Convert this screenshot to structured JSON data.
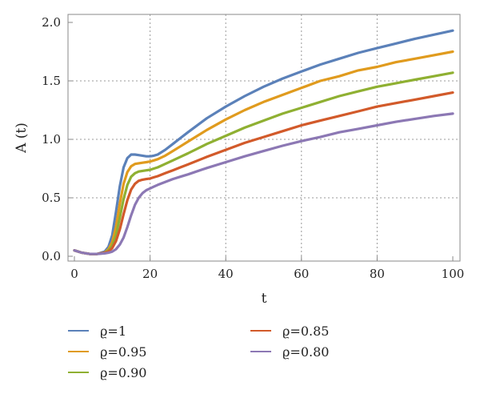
{
  "chart_data": {
    "type": "line",
    "title": "",
    "xlabel": "t",
    "ylabel": "A (t)",
    "xlim": [
      0,
      100
    ],
    "ylim": [
      0,
      2
    ],
    "xticks": [
      0,
      20,
      40,
      60,
      80,
      100
    ],
    "yticks": [
      0.0,
      0.5,
      1.0,
      1.5,
      2.0
    ],
    "ytick_labels": [
      "0.0",
      "0.5",
      "1.0",
      "1.5",
      "2.0"
    ],
    "grid": true,
    "legend_position": "bottom",
    "series": [
      {
        "name": "ϱ=1",
        "color": "#5b81b9",
        "x": [
          0,
          2,
          4,
          6,
          8,
          9,
          10,
          11,
          12,
          13,
          14,
          15,
          16,
          17,
          18,
          19,
          20,
          21,
          22,
          24,
          26,
          28,
          30,
          35,
          40,
          45,
          50,
          55,
          60,
          65,
          70,
          75,
          80,
          85,
          90,
          95,
          100
        ],
        "y": [
          0.05,
          0.03,
          0.02,
          0.02,
          0.04,
          0.08,
          0.18,
          0.38,
          0.6,
          0.76,
          0.84,
          0.87,
          0.87,
          0.865,
          0.86,
          0.855,
          0.855,
          0.86,
          0.87,
          0.91,
          0.96,
          1.01,
          1.06,
          1.18,
          1.28,
          1.37,
          1.45,
          1.52,
          1.58,
          1.64,
          1.69,
          1.74,
          1.78,
          1.82,
          1.86,
          1.895,
          1.93
        ]
      },
      {
        "name": "ϱ=0.95",
        "color": "#e09b1e",
        "x": [
          0,
          2,
          4,
          6,
          8,
          9,
          10,
          11,
          12,
          13,
          14,
          15,
          16,
          17,
          18,
          19,
          20,
          21,
          22,
          24,
          26,
          28,
          30,
          35,
          40,
          45,
          50,
          55,
          60,
          65,
          70,
          75,
          80,
          85,
          90,
          95,
          100
        ],
        "y": [
          0.05,
          0.03,
          0.02,
          0.02,
          0.03,
          0.06,
          0.12,
          0.25,
          0.45,
          0.62,
          0.72,
          0.77,
          0.79,
          0.795,
          0.8,
          0.805,
          0.81,
          0.82,
          0.83,
          0.86,
          0.9,
          0.94,
          0.98,
          1.08,
          1.17,
          1.25,
          1.32,
          1.38,
          1.44,
          1.5,
          1.54,
          1.59,
          1.62,
          1.66,
          1.69,
          1.72,
          1.75
        ]
      },
      {
        "name": "ϱ=0.90",
        "color": "#8fb032",
        "x": [
          0,
          2,
          4,
          6,
          8,
          9,
          10,
          11,
          12,
          13,
          14,
          15,
          16,
          17,
          18,
          19,
          20,
          21,
          22,
          24,
          26,
          28,
          30,
          35,
          40,
          45,
          50,
          55,
          60,
          65,
          70,
          75,
          80,
          85,
          90,
          95,
          100
        ],
        "y": [
          0.05,
          0.03,
          0.02,
          0.02,
          0.03,
          0.05,
          0.09,
          0.18,
          0.33,
          0.49,
          0.61,
          0.68,
          0.71,
          0.725,
          0.73,
          0.735,
          0.74,
          0.75,
          0.76,
          0.79,
          0.82,
          0.85,
          0.88,
          0.96,
          1.03,
          1.1,
          1.16,
          1.22,
          1.27,
          1.32,
          1.37,
          1.41,
          1.45,
          1.48,
          1.51,
          1.54,
          1.57
        ]
      },
      {
        "name": "ϱ=0.85",
        "color": "#d25a2a",
        "x": [
          0,
          2,
          4,
          6,
          8,
          9,
          10,
          11,
          12,
          13,
          14,
          15,
          16,
          17,
          18,
          19,
          20,
          21,
          22,
          24,
          26,
          28,
          30,
          35,
          40,
          45,
          50,
          55,
          60,
          65,
          70,
          75,
          80,
          85,
          90,
          95,
          100
        ],
        "y": [
          0.05,
          0.03,
          0.02,
          0.02,
          0.03,
          0.04,
          0.07,
          0.13,
          0.23,
          0.36,
          0.48,
          0.57,
          0.62,
          0.645,
          0.655,
          0.66,
          0.665,
          0.675,
          0.685,
          0.71,
          0.735,
          0.76,
          0.785,
          0.85,
          0.91,
          0.97,
          1.02,
          1.07,
          1.12,
          1.16,
          1.2,
          1.24,
          1.28,
          1.31,
          1.34,
          1.37,
          1.4
        ]
      },
      {
        "name": "ϱ=0.80",
        "color": "#8c78b4",
        "x": [
          0,
          2,
          4,
          6,
          8,
          9,
          10,
          11,
          12,
          13,
          14,
          15,
          16,
          17,
          18,
          19,
          20,
          21,
          22,
          24,
          26,
          28,
          30,
          35,
          40,
          45,
          50,
          55,
          60,
          65,
          70,
          75,
          80,
          85,
          90,
          95,
          100
        ],
        "y": [
          0.05,
          0.03,
          0.02,
          0.02,
          0.025,
          0.03,
          0.04,
          0.06,
          0.1,
          0.16,
          0.25,
          0.35,
          0.44,
          0.5,
          0.54,
          0.565,
          0.58,
          0.595,
          0.61,
          0.635,
          0.66,
          0.68,
          0.7,
          0.755,
          0.805,
          0.855,
          0.9,
          0.945,
          0.985,
          1.02,
          1.06,
          1.09,
          1.12,
          1.15,
          1.175,
          1.2,
          1.22
        ]
      }
    ]
  }
}
